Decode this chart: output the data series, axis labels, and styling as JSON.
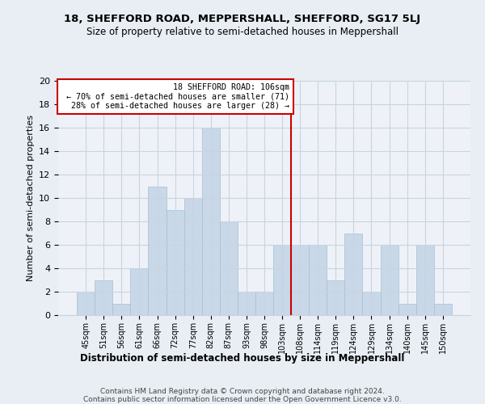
{
  "title": "18, SHEFFORD ROAD, MEPPERSHALL, SHEFFORD, SG17 5LJ",
  "subtitle": "Size of property relative to semi-detached houses in Meppershall",
  "xlabel": "Distribution of semi-detached houses by size in Meppershall",
  "ylabel": "Number of semi-detached properties",
  "categories": [
    "45sqm",
    "51sqm",
    "56sqm",
    "61sqm",
    "66sqm",
    "72sqm",
    "77sqm",
    "82sqm",
    "87sqm",
    "93sqm",
    "98sqm",
    "103sqm",
    "108sqm",
    "114sqm",
    "119sqm",
    "124sqm",
    "129sqm",
    "134sqm",
    "140sqm",
    "145sqm",
    "150sqm"
  ],
  "values": [
    2,
    3,
    1,
    4,
    11,
    9,
    10,
    16,
    8,
    2,
    2,
    6,
    6,
    6,
    3,
    7,
    2,
    6,
    1,
    6,
    1
  ],
  "bar_color": "#c8d8e8",
  "bar_edgecolor": "#a8bece",
  "subject_line_bin": 12,
  "subject_label": "18 SHEFFORD ROAD: 106sqm",
  "pct_smaller": 70,
  "n_smaller": 71,
  "pct_larger": 28,
  "n_larger": 28,
  "annotation_box_color": "#cc0000",
  "ylim": [
    0,
    20
  ],
  "yticks": [
    0,
    2,
    4,
    6,
    8,
    10,
    12,
    14,
    16,
    18,
    20
  ],
  "footnote_line1": "Contains HM Land Registry data © Crown copyright and database right 2024.",
  "footnote_line2": "Contains public sector information licensed under the Open Government Licence v3.0.",
  "bg_color": "#e8eef4",
  "plot_bg_color": "#eef2f8",
  "grid_color": "#c8d4e0",
  "title_fontsize": 9.5,
  "subtitle_fontsize": 8.5
}
